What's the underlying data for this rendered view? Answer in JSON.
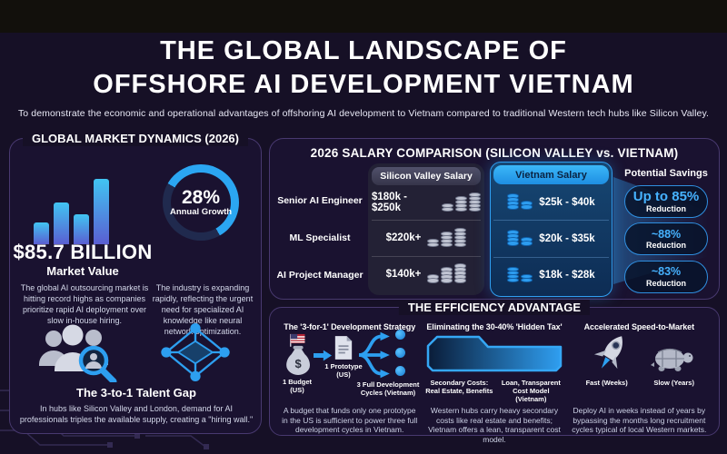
{
  "meta": {
    "bg_color": "#161026",
    "accent_blue": "#2d9ff0",
    "panel_border_color": "#48396f",
    "vietnam_header_color": "#2aa7f5"
  },
  "header": {
    "title_line1": "THE GLOBAL LANDSCAPE OF",
    "title_line2": "OFFSHORE AI DEVELOPMENT VIETNAM",
    "subtitle": "To demonstrate the economic and operational advantages of offshoring AI development to Vietnam compared to traditional Western tech hubs like Silicon Valley."
  },
  "market": {
    "title": "GLOBAL MARKET DYNAMICS (2026)",
    "value": "$85.7 BILLION",
    "value_label": "Market Value",
    "value_text": "The global AI outsourcing market is hitting record highs as companies prioritize rapid AI deployment over slow in-house hiring.",
    "growth_pct": "28%",
    "growth_label": "Annual Growth",
    "growth_text": "The industry is expanding rapidly, reflecting the urgent need for specialized AI knowledge like neural network optimization.",
    "talent_title": "The 3-to-1 Talent Gap",
    "talent_text": "In hubs like Silicon Valley and London, demand for AI professionals triples the available supply, creating a \"hiring wall.\""
  },
  "salary": {
    "title": "2026 SALARY COMPARISON (SILICON VALLEY vs. VIETNAM)",
    "col_sv": "Silicon Valley Salary",
    "col_vn": "Vietnam Salary",
    "col_savings": "Potential Savings",
    "rows": [
      {
        "role": "Senior AI Engineer",
        "sv": "$180k - $250k",
        "vn": "$25k - $40k",
        "savings": "Up to 85%",
        "savings_sub": "Reduction"
      },
      {
        "role": "ML Specialist",
        "sv": "$220k+",
        "vn": "$20k - $35k",
        "savings": "~88%",
        "savings_sub": "Reduction"
      },
      {
        "role": "AI Project Manager",
        "sv": "$140k+",
        "vn": "$18k - $28k",
        "savings": "~83%",
        "savings_sub": "Reduction"
      }
    ]
  },
  "efficiency": {
    "title": "THE EFFICIENCY ADVANTAGE",
    "cards": [
      {
        "title": "The '3-for-1' Development Strategy",
        "label_budget": "1 Budget (US)",
        "label_prototype": "1 Prototype (US)",
        "label_cycles": "3 Full Development Cycles (Vietnam)",
        "caption": "A budget that funds only one prototype in the US is sufficient to power three full development cycles in Vietnam."
      },
      {
        "title": "Eliminating the 30-40% 'Hidden Tax'",
        "label_left": "Secondary Costs: Real Estate, Benefits",
        "label_right": "Loan, Transparent Cost Model (Vietnam)",
        "caption": "Western hubs carry heavy secondary costs like real estate and benefits; Vietnam offers a lean, transparent cost model."
      },
      {
        "title": "Accelerated Speed-to-Market",
        "label_fast": "Fast (Weeks)",
        "label_slow": "Slow (Years)",
        "caption": "Deploy AI in weeks instead of years by bypassing the months long recruitment cycles typical of local Western markets."
      }
    ]
  },
  "icons": {
    "market_bars": "bar-chart-icon",
    "annual_growth": "donut-chart-icon",
    "talent_gap": "team-search-icon",
    "ai_network": "ai-network-icon",
    "sv_money": "coin-stack-gray-icon",
    "vn_money": "coin-stack-blue-icon",
    "budget": "money-bag-icon",
    "budget_flag": "us-flag-icon",
    "prototype": "document-icon",
    "branch": "branch-arrows-icon",
    "cycles": "three-nodes-icon",
    "hidden_tax": "folder-gradient-icon",
    "fast": "rocket-icon",
    "slow": "turtle-icon"
  },
  "chart_data": [
    {
      "type": "table",
      "title": "2026 SALARY COMPARISON (SILICON VALLEY vs. VIETNAM)",
      "columns": [
        "Role",
        "Silicon Valley Salary",
        "Vietnam Salary",
        "Potential Savings"
      ],
      "rows": [
        [
          "Senior AI Engineer",
          "$180k - $250k",
          "$25k - $40k",
          "Up to 85% Reduction"
        ],
        [
          "ML Specialist",
          "$220k+",
          "$20k - $35k",
          "~88% Reduction"
        ],
        [
          "AI Project Manager",
          "$140k+",
          "$18k - $28k",
          "~83% Reduction"
        ]
      ],
      "legend_position": "none",
      "grid": false
    },
    {
      "type": "pie",
      "title": "Annual Growth",
      "labels": [
        "Annual Growth",
        "Remainder"
      ],
      "values": [
        28,
        72
      ],
      "center_label": "28%",
      "annotation": "$85.7 BILLION Market Value"
    }
  ]
}
